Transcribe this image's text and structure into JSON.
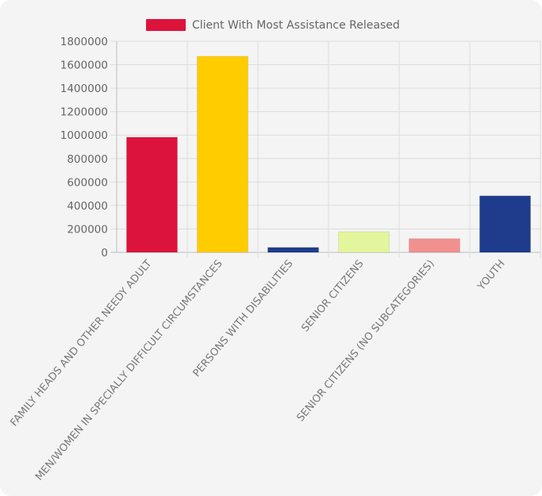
{
  "chart_data": {
    "type": "bar",
    "title": "",
    "xlabel": "",
    "ylabel": "",
    "legend": {
      "label": "Client With Most Assistance Released",
      "color": "#dc143c",
      "placement": "top"
    },
    "categories": [
      "FAMILY HEADS AND OTHER NEEDY ADULT",
      "MEN/WOMEN IN SPECIALLY DIFFICULT CIRCUMSTANCES",
      "PERSONS WITH DISABILITIES",
      "SENIOR CITIZENS",
      "SENIOR CITIZENS (NO SUBCATEGORIES)",
      "YOUTH"
    ],
    "series": [
      {
        "name": "Client With Most Assistance Released",
        "values": [
          982000,
          1672000,
          42000,
          176000,
          117000,
          482000
        ],
        "colors": [
          "#dc143c",
          "#ffcc00",
          "#1f3b8c",
          "#e3f59d",
          "#f29090",
          "#1f3b8c"
        ]
      }
    ],
    "ylim": [
      0,
      1800000
    ],
    "yticks": [
      "0",
      "200000",
      "400000",
      "600000",
      "800000",
      "1000000",
      "1200000",
      "1400000",
      "1600000",
      "1800000"
    ],
    "grid": true
  }
}
